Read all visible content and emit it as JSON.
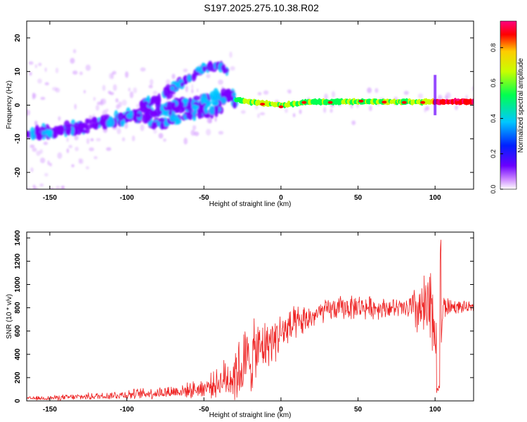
{
  "title": "S197.2025.275.10.38.R02",
  "colors": {
    "snr_line": "#ee2222",
    "low_amp": "#7a00ff",
    "colormap": [
      "#ffffff",
      "#cc88ff",
      "#6a00ff",
      "#0020ff",
      "#00c8ff",
      "#00ff50",
      "#c8ff00",
      "#ffcc00",
      "#ff0000",
      "#ff007f"
    ]
  },
  "chart_data": [
    {
      "type": "heatmap",
      "name": "spectrogram",
      "xlabel": "Height of straight line (km)",
      "ylabel": "Frequency (Hz)",
      "xlim": [
        -165,
        125
      ],
      "ylim": [
        -25,
        25
      ],
      "xticks": [
        -150,
        -100,
        -50,
        0,
        50,
        100
      ],
      "yticks": [
        -20,
        -10,
        0,
        10,
        20
      ],
      "xtick_labels": [
        "-150",
        "-100",
        "-50",
        "0",
        "50",
        "100"
      ],
      "ytick_labels": [
        "-20",
        "-10",
        "0",
        "10",
        "20"
      ],
      "ridge": {
        "x": [
          -165,
          -150,
          -130,
          -110,
          -90,
          -70,
          -50,
          -35,
          -28,
          -20,
          -10,
          0,
          20,
          50,
          80,
          95,
          100,
          125
        ],
        "y": [
          -8,
          -8.5,
          -6.5,
          -4.5,
          -3,
          -1,
          1,
          3,
          1.5,
          1,
          0.5,
          0,
          1,
          1,
          1,
          1,
          1,
          1
        ],
        "amplitude": [
          0.2,
          0.22,
          0.3,
          0.3,
          0.28,
          0.25,
          0.25,
          0.3,
          0.45,
          0.55,
          0.6,
          0.55,
          0.5,
          0.52,
          0.55,
          0.6,
          0.85,
          0.85
        ]
      },
      "upper_branch": {
        "x": [
          -90,
          -80,
          -70,
          -60,
          -50,
          -40,
          -35
        ],
        "y": [
          0,
          2,
          5,
          8,
          11,
          12,
          10
        ]
      },
      "lower_branch": {
        "x": [
          -85,
          -75,
          -65,
          -55,
          -45,
          -38
        ],
        "y": [
          -6,
          -5,
          -4,
          -3,
          -2,
          -1
        ]
      },
      "hot_spots": [
        {
          "x": -12,
          "y": 0.3
        },
        {
          "x": 0,
          "y": -0.5
        },
        {
          "x": 15,
          "y": 0.8
        },
        {
          "x": 32,
          "y": 0.8
        },
        {
          "x": 52,
          "y": 1.2
        },
        {
          "x": 67,
          "y": 0.9
        },
        {
          "x": 80,
          "y": 0.8
        },
        {
          "x": 92,
          "y": 0.8
        },
        {
          "x": 105,
          "y": 0.8
        },
        {
          "x": 115,
          "y": 0.8
        }
      ]
    },
    {
      "type": "colorbar",
      "name": "amplitude-colorbar",
      "label": "Normalized spectral amplitude",
      "range": [
        0,
        0.95
      ],
      "ticks": [
        0.0,
        0.2,
        0.4,
        0.6,
        0.8
      ],
      "tick_labels": [
        "0.0",
        "0.2",
        "0.4",
        "0.6",
        "0.8"
      ]
    },
    {
      "type": "line",
      "name": "snr",
      "xlabel": "Height of straight line (km)",
      "ylabel": "SNR (10 * v/v)",
      "xlim": [
        -165,
        125
      ],
      "ylim": [
        0,
        1450
      ],
      "xticks": [
        -150,
        -100,
        -50,
        0,
        50,
        100
      ],
      "yticks": [
        0,
        200,
        400,
        600,
        800,
        1000,
        1200,
        1400
      ],
      "xtick_labels": [
        "-150",
        "-100",
        "-50",
        "0",
        "50",
        "100"
      ],
      "ytick_labels": [
        "0",
        "200",
        "400",
        "600",
        "800",
        "1000",
        "1200",
        "1400"
      ],
      "envelope": {
        "x": [
          -165,
          -150,
          -120,
          -100,
          -80,
          -60,
          -50,
          -40,
          -30,
          -25,
          -20,
          -15,
          -10,
          0,
          10,
          20,
          30,
          40,
          50,
          60,
          70,
          80,
          85,
          90,
          95,
          100,
          102,
          103,
          105,
          110,
          125
        ],
        "mean": [
          20,
          25,
          40,
          55,
          70,
          90,
          110,
          160,
          230,
          300,
          360,
          430,
          480,
          580,
          650,
          720,
          780,
          800,
          810,
          800,
          800,
          790,
          790,
          780,
          760,
          700,
          500,
          80,
          800,
          810,
          800
        ],
        "spread": [
          15,
          20,
          30,
          40,
          50,
          60,
          80,
          120,
          250,
          300,
          300,
          250,
          200,
          180,
          150,
          100,
          90,
          100,
          100,
          90,
          80,
          80,
          150,
          250,
          350,
          400,
          500,
          50,
          120,
          60,
          40
        ]
      }
    }
  ]
}
